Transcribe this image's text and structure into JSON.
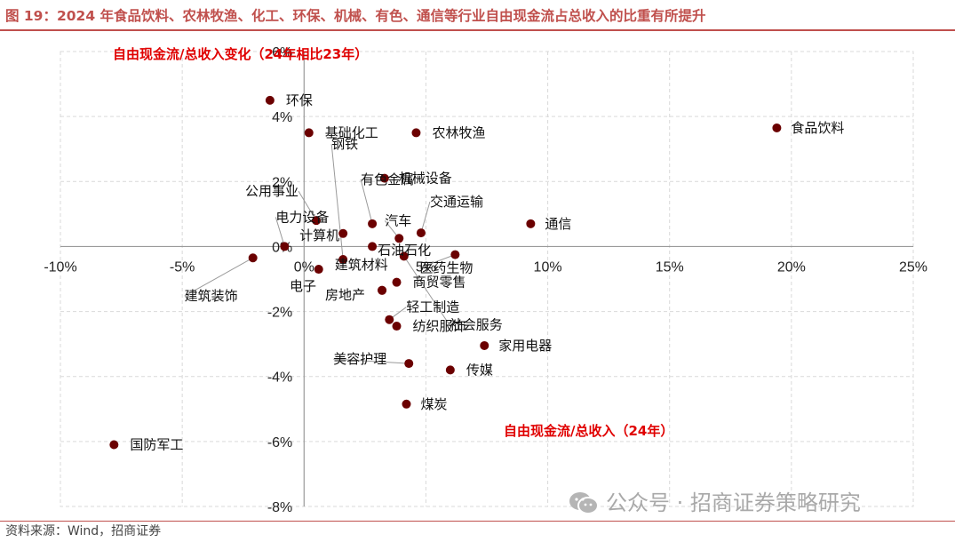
{
  "title": "图 19：2024 年食品饮料、农林牧渔、化工、环保、机械、有色、通信等行业自由现金流占总收入的比重有所提升",
  "source": "资料来源：Wind，招商证券",
  "watermark": "公众号 · 招商证券策略研究",
  "watermark_icon": "wechat-icon",
  "colors": {
    "accent": "#c0504d",
    "point": "#6b0000",
    "annotation": "#e00000",
    "grid": "#d9d9d9"
  },
  "chart_data": {
    "type": "scatter",
    "x_annotation": "自由现金流/总收入（24年）",
    "y_annotation": "自由现金流/总收入变化（24年相比23年）",
    "xlim": [
      -10,
      25
    ],
    "ylim": [
      -8,
      6
    ],
    "x_ticks": [
      "-10%",
      "-5%",
      "0%",
      "5%",
      "10%",
      "15%",
      "20%",
      "25%"
    ],
    "y_ticks": [
      "6%",
      "4%",
      "2%",
      "0%",
      "-2%",
      "-4%",
      "-6%",
      "-8%"
    ],
    "x_tick_values": [
      -10,
      -5,
      0,
      5,
      10,
      15,
      20,
      25
    ],
    "y_tick_values": [
      6,
      4,
      2,
      0,
      -2,
      -4,
      -6,
      -8
    ],
    "grid": true,
    "points": [
      {
        "name": "环保",
        "x": -1.4,
        "y": 4.5
      },
      {
        "name": "基础化工",
        "x": 0.2,
        "y": 3.5
      },
      {
        "name": "农林牧渔",
        "x": 4.6,
        "y": 3.5
      },
      {
        "name": "食品饮料",
        "x": 19.4,
        "y": 3.65
      },
      {
        "name": "机械设备",
        "x": 3.3,
        "y": 2.1
      },
      {
        "name": "通信",
        "x": 9.3,
        "y": 0.7
      },
      {
        "name": "公用事业",
        "x": 0.5,
        "y": 0.8
      },
      {
        "name": "有色金属",
        "x": 2.8,
        "y": 0.7
      },
      {
        "name": "交通运输",
        "x": 4.8,
        "y": 0.42
      },
      {
        "name": "计算机",
        "x": 1.6,
        "y": 0.4
      },
      {
        "name": "汽车",
        "x": 3.9,
        "y": 0.25
      },
      {
        "name": "电力设备",
        "x": -0.8,
        "y": 0.0
      },
      {
        "name": "石油石化",
        "x": 2.8,
        "y": 0.0
      },
      {
        "name": "医药生物",
        "x": 6.2,
        "y": -0.25
      },
      {
        "name": "建筑装饰",
        "x": -2.1,
        "y": -0.35
      },
      {
        "name": "钢铁",
        "x": 1.6,
        "y": -0.4
      },
      {
        "name": "社会服务",
        "x": 4.1,
        "y": -0.3
      },
      {
        "name": "建筑材料",
        "x": 0.6,
        "y": -0.7
      },
      {
        "name": "商贸零售",
        "x": 3.8,
        "y": -1.1
      },
      {
        "name": "电子",
        "x": 3.2,
        "y": -1.35
      },
      {
        "name": "房地产",
        "x": 3.2,
        "y": -1.35
      },
      {
        "name": "轻工制造",
        "x": 3.5,
        "y": -2.25
      },
      {
        "name": "纺织服饰",
        "x": 3.8,
        "y": -2.45
      },
      {
        "name": "家用电器",
        "x": 7.4,
        "y": -3.05
      },
      {
        "name": "美容护理",
        "x": 4.3,
        "y": -3.6
      },
      {
        "name": "传媒",
        "x": 6.0,
        "y": -3.8
      },
      {
        "name": "煤炭",
        "x": 4.2,
        "y": -4.85
      },
      {
        "name": "国防军工",
        "x": -7.8,
        "y": -6.1
      }
    ]
  }
}
